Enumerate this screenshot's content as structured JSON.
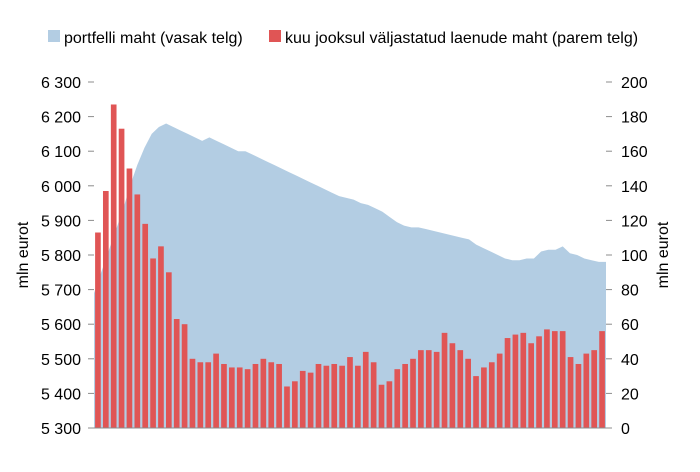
{
  "chart_data": {
    "type": "bar+area",
    "legend_placement": "top",
    "grid": false,
    "left_axis": {
      "label": "mln eurot",
      "ylim": [
        5300,
        6300
      ],
      "ticks": [
        5300,
        5400,
        5500,
        5600,
        5700,
        5800,
        5900,
        6000,
        6100,
        6200,
        6300
      ],
      "tick_labels": [
        "5 300",
        "5 400",
        "5 500",
        "5 600",
        "5 700",
        "5 800",
        "5 900",
        "6 000",
        "6 100",
        "6 200",
        "6 300"
      ]
    },
    "right_axis": {
      "label": "mln eurot",
      "ylim": [
        0,
        200
      ],
      "ticks": [
        0,
        20,
        40,
        60,
        80,
        100,
        120,
        140,
        160,
        180,
        200
      ],
      "tick_labels": [
        "0",
        "20",
        "40",
        "60",
        "80",
        "100",
        "120",
        "140",
        "160",
        "180",
        "200"
      ]
    },
    "series": [
      {
        "name": "portfelli maht  (vasak telg)",
        "type": "area",
        "axis": "left",
        "color": "#b3cde3",
        "values": [
          5690,
          5750,
          5810,
          5870,
          5930,
          6000,
          6060,
          6110,
          6150,
          6170,
          6180,
          6170,
          6160,
          6150,
          6140,
          6130,
          6140,
          6130,
          6120,
          6110,
          6100,
          6100,
          6090,
          6080,
          6070,
          6060,
          6050,
          6040,
          6030,
          6020,
          6010,
          6000,
          5990,
          5980,
          5970,
          5965,
          5960,
          5950,
          5945,
          5935,
          5925,
          5910,
          5895,
          5885,
          5880,
          5880,
          5875,
          5870,
          5865,
          5860,
          5855,
          5850,
          5845,
          5830,
          5820,
          5810,
          5800,
          5790,
          5785,
          5785,
          5790,
          5790,
          5810,
          5815,
          5815,
          5825,
          5805,
          5800,
          5790,
          5785,
          5780,
          5780
        ]
      },
      {
        "name": "kuu jooksul väljastatud  laenude maht  (parem telg)",
        "type": "bar",
        "axis": "right",
        "color": "#e05555",
        "values": [
          113,
          137,
          187,
          173,
          150,
          135,
          118,
          98,
          105,
          90,
          63,
          60,
          40,
          38,
          38,
          43,
          37,
          35,
          35,
          34,
          37,
          40,
          38,
          37,
          24,
          27,
          33,
          32,
          37,
          36,
          37,
          36,
          41,
          36,
          44,
          38,
          25,
          27,
          34,
          37,
          40,
          45,
          45,
          44,
          55,
          49,
          45,
          40,
          30,
          35,
          38,
          43,
          52,
          54,
          55,
          49,
          53,
          57,
          56,
          56,
          41,
          37,
          43,
          45,
          56
        ]
      }
    ]
  }
}
